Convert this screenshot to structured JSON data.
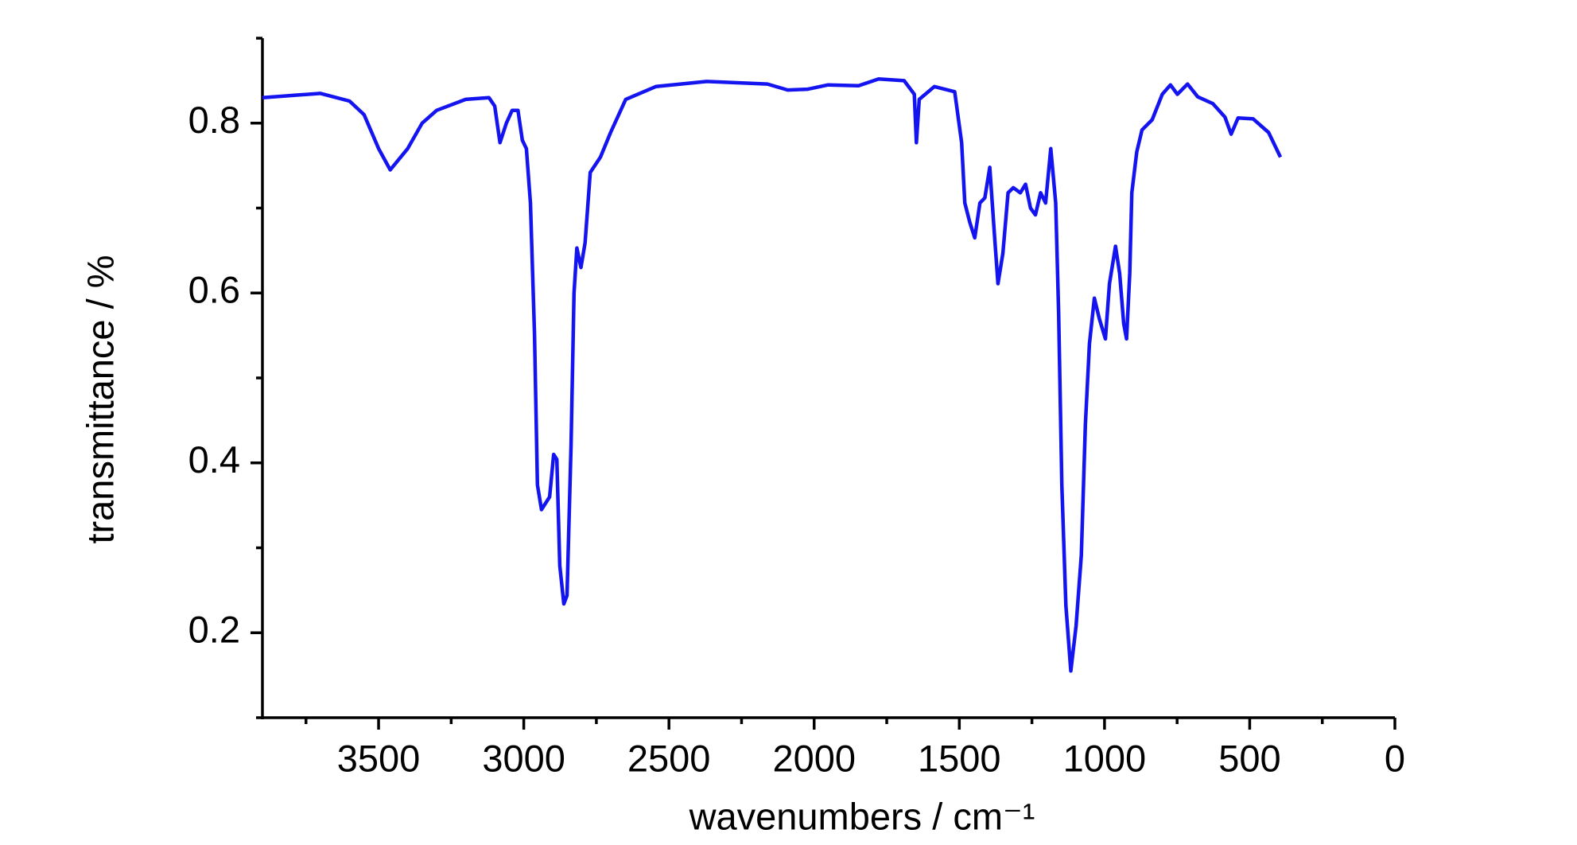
{
  "chart_data": {
    "type": "line",
    "xlabel": "wavenumbers / cm⁻¹",
    "ylabel": "transmittance / %",
    "color": "#1414f0",
    "x": [
      3900,
      3700,
      3600,
      3550,
      3500,
      3460,
      3400,
      3350,
      3300,
      3200,
      3120,
      3100,
      3082,
      3060,
      3040,
      3020,
      3005,
      2991,
      2977,
      2963,
      2953,
      2939,
      2911,
      2897,
      2886,
      2876,
      2862,
      2851,
      2837,
      2827,
      2817,
      2803,
      2789,
      2771,
      2736,
      2701,
      2649,
      2545,
      2370,
      2161,
      2091,
      2022,
      1952,
      1847,
      1778,
      1690,
      1655,
      1648,
      1638,
      1586,
      1516,
      1492,
      1481,
      1464,
      1447,
      1429,
      1412,
      1395,
      1377,
      1367,
      1350,
      1332,
      1314,
      1290,
      1272,
      1255,
      1238,
      1220,
      1203,
      1185,
      1168,
      1158,
      1147,
      1133,
      1116,
      1098,
      1080,
      1066,
      1052,
      1035,
      1018,
      997,
      983,
      962,
      948,
      934,
      924,
      913,
      906,
      889,
      871,
      836,
      801,
      773,
      749,
      714,
      679,
      627,
      585,
      564,
      540,
      488,
      435,
      394
    ],
    "values": [
      0.83,
      0.835,
      0.826,
      0.81,
      0.77,
      0.745,
      0.77,
      0.8,
      0.815,
      0.828,
      0.83,
      0.82,
      0.777,
      0.8,
      0.815,
      0.815,
      0.78,
      0.77,
      0.706,
      0.552,
      0.374,
      0.345,
      0.36,
      0.41,
      0.404,
      0.279,
      0.234,
      0.244,
      0.422,
      0.6,
      0.653,
      0.63,
      0.659,
      0.742,
      0.76,
      0.789,
      0.828,
      0.843,
      0.849,
      0.846,
      0.839,
      0.84,
      0.845,
      0.844,
      0.852,
      0.85,
      0.834,
      0.777,
      0.828,
      0.843,
      0.837,
      0.777,
      0.706,
      0.683,
      0.665,
      0.706,
      0.712,
      0.748,
      0.659,
      0.611,
      0.647,
      0.718,
      0.724,
      0.718,
      0.728,
      0.7,
      0.692,
      0.718,
      0.706,
      0.77,
      0.706,
      0.576,
      0.374,
      0.232,
      0.155,
      0.208,
      0.291,
      0.445,
      0.54,
      0.594,
      0.57,
      0.546,
      0.611,
      0.655,
      0.623,
      0.564,
      0.546,
      0.623,
      0.718,
      0.766,
      0.792,
      0.804,
      0.834,
      0.845,
      0.834,
      0.846,
      0.831,
      0.823,
      0.807,
      0.787,
      0.806,
      0.805,
      0.789,
      0.76
    ],
    "xlim": [
      3900,
      0
    ],
    "xticks": [
      3500,
      3000,
      2500,
      2000,
      1500,
      1000,
      500,
      0
    ],
    "xminorticks": [
      3750,
      3250,
      2750,
      2250,
      1750,
      1250,
      750,
      250
    ],
    "ylim": [
      0.1,
      0.9
    ],
    "yticks": [
      0.2,
      0.4,
      0.6,
      0.8
    ],
    "yminorticks": [
      0.1,
      0.3,
      0.5,
      0.7,
      0.9
    ],
    "grid": false
  }
}
